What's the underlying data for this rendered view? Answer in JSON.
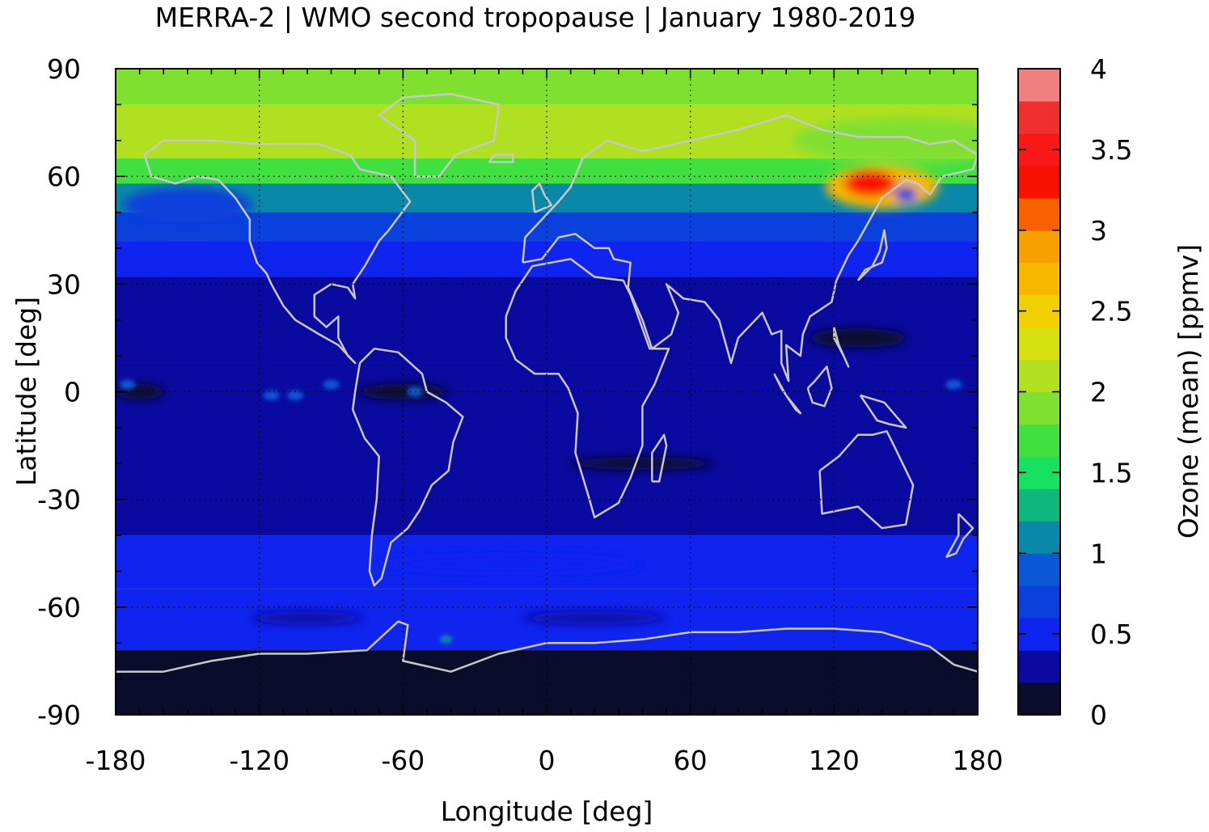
{
  "chart_data": {
    "type": "heatmap",
    "title": "MERRA-2 | WMO second tropopause | January 1980-2019",
    "xlabel": "Longitude [deg]",
    "ylabel": "Latitude [deg]",
    "xlim": [
      -180,
      180
    ],
    "ylim": [
      -90,
      90
    ],
    "xticks": [
      -180,
      -120,
      -60,
      0,
      60,
      120,
      180
    ],
    "yticks": [
      -90,
      -60,
      -30,
      0,
      30,
      60,
      90
    ],
    "grid": true,
    "colorbar": {
      "label": "Ozone (mean) [ppmv]",
      "range": [
        0,
        4
      ],
      "ticks": [
        "0",
        "0.5",
        "1",
        "1.5",
        "2",
        "2.5",
        "3",
        "3.5",
        "4"
      ],
      "step": 0.2,
      "colors": [
        "#0b0b2b",
        "#0a0aa0",
        "#1024f0",
        "#0a40dc",
        "#0a58d6",
        "#0a88a8",
        "#10b880",
        "#18e060",
        "#40e040",
        "#80e030",
        "#b0e020",
        "#d8e010",
        "#f0d000",
        "#f8b800",
        "#f8a000",
        "#f86000",
        "#f81000",
        "#f81818",
        "#f03030",
        "#f08080",
        "#f8c8c8"
      ]
    },
    "zonal_bands_ppmv": [
      {
        "lat_range": [
          80,
          90
        ],
        "value": 1.8
      },
      {
        "lat_range": [
          65,
          80
        ],
        "value": 2.0
      },
      {
        "lat_range": [
          58,
          65
        ],
        "value": 1.6
      },
      {
        "lat_range": [
          50,
          58
        ],
        "value": 1.1
      },
      {
        "lat_range": [
          42,
          50
        ],
        "value": 0.7
      },
      {
        "lat_range": [
          32,
          42
        ],
        "value": 0.5
      },
      {
        "lat_range": [
          8,
          32
        ],
        "value": 0.3
      },
      {
        "lat_range": [
          -8,
          8
        ],
        "value": 0.2
      },
      {
        "lat_range": [
          -40,
          -8
        ],
        "value": 0.3
      },
      {
        "lat_range": [
          -55,
          -40
        ],
        "value": 0.5
      },
      {
        "lat_range": [
          -72,
          -55
        ],
        "value": 0.4
      },
      {
        "lat_range": [
          -90,
          -72
        ],
        "value": 0.1
      }
    ],
    "regional_maximum": {
      "lon_range": [
        120,
        160
      ],
      "lat_range": [
        50,
        65
      ],
      "value": 3.2
    }
  }
}
